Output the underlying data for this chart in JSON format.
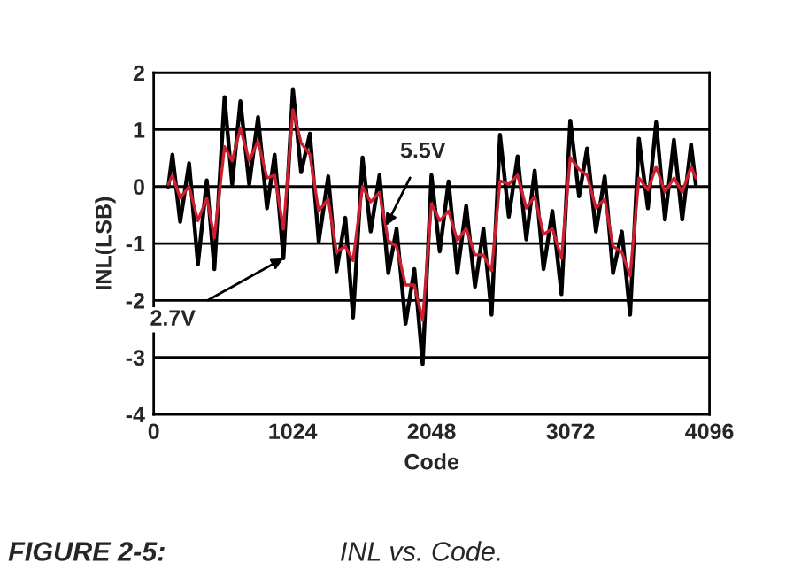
{
  "chart_data": {
    "type": "line",
    "xlabel": "Code",
    "ylabel": "INL(LSB)",
    "x": [
      108,
      138,
      195,
      261,
      326,
      391,
      447,
      522,
      578,
      639,
      704,
      769,
      835,
      891,
      956,
      1026,
      1086,
      1151,
      1216,
      1286,
      1347,
      1412,
      1469,
      1539,
      1599,
      1664,
      1729,
      1790,
      1856,
      1921,
      1982,
      2047,
      2108,
      2173,
      2238,
      2303,
      2368,
      2430,
      2490,
      2552,
      2617,
      2682,
      2746,
      2808,
      2873,
      2938,
      3005,
      3070,
      3135,
      3194,
      3259,
      3324,
      3385,
      3450,
      3511,
      3576,
      3642,
      3703,
      3768,
      3834,
      3895,
      3960,
      3995
    ],
    "series": [
      {
        "color": "#000000",
        "values": [
          0.0,
          0.56,
          -0.62,
          0.41,
          -1.37,
          0.11,
          -1.45,
          1.57,
          0.04,
          1.5,
          0.04,
          1.22,
          -0.38,
          0.56,
          -1.26,
          1.71,
          0.25,
          0.93,
          -0.97,
          0.18,
          -1.49,
          -0.55,
          -2.3,
          0.51,
          -0.79,
          0.2,
          -1.52,
          -0.74,
          -2.41,
          -1.45,
          -3.12,
          0.2,
          -1.14,
          0.09,
          -1.52,
          -0.34,
          -1.76,
          -0.74,
          -2.25,
          0.91,
          -0.53,
          0.53,
          -0.93,
          0.28,
          -1.45,
          -0.43,
          -1.89,
          1.16,
          -0.17,
          0.67,
          -0.79,
          0.18,
          -1.52,
          -0.79,
          -2.25,
          0.84,
          -0.38,
          1.13,
          -0.58,
          0.82,
          -0.58,
          0.74,
          0.04
        ]
      },
      {
        "color": "#cc2030",
        "values": [
          0.04,
          0.2,
          -0.2,
          0.0,
          -0.6,
          -0.2,
          -0.9,
          0.7,
          0.45,
          1.03,
          0.45,
          0.8,
          0.15,
          0.2,
          -0.75,
          1.35,
          0.77,
          0.56,
          -0.43,
          -0.22,
          -1.15,
          -1.05,
          -1.3,
          0.0,
          -0.27,
          -0.1,
          -0.95,
          -1.05,
          -1.73,
          -1.73,
          -2.35,
          -0.3,
          -0.6,
          -0.43,
          -0.95,
          -0.74,
          -1.2,
          -1.2,
          -1.48,
          0.1,
          0.04,
          0.2,
          -0.38,
          -0.17,
          -0.84,
          -0.74,
          -1.26,
          0.51,
          0.3,
          0.2,
          -0.38,
          -0.22,
          -1.05,
          -1.15,
          -1.57,
          0.15,
          -0.06,
          0.35,
          -0.1,
          0.15,
          -0.1,
          0.35,
          0.15
        ]
      }
    ],
    "xlim": [
      0,
      4096
    ],
    "xticks": [
      0,
      1024,
      2048,
      3072,
      4096
    ],
    "ylim": [
      -4,
      2
    ],
    "yticks": [
      -4,
      -3,
      -2,
      -1,
      0,
      1,
      2
    ],
    "grid": "y",
    "marker": "none",
    "line_style": "solid",
    "legend": false,
    "annotations": [
      {
        "text": "2.7V",
        "x": 956,
        "y": -1.26
      },
      {
        "text": "5.5V",
        "x": 1712,
        "y": -0.69
      },
      "FIGURE 2-5:",
      "INL vs. Code."
    ]
  }
}
